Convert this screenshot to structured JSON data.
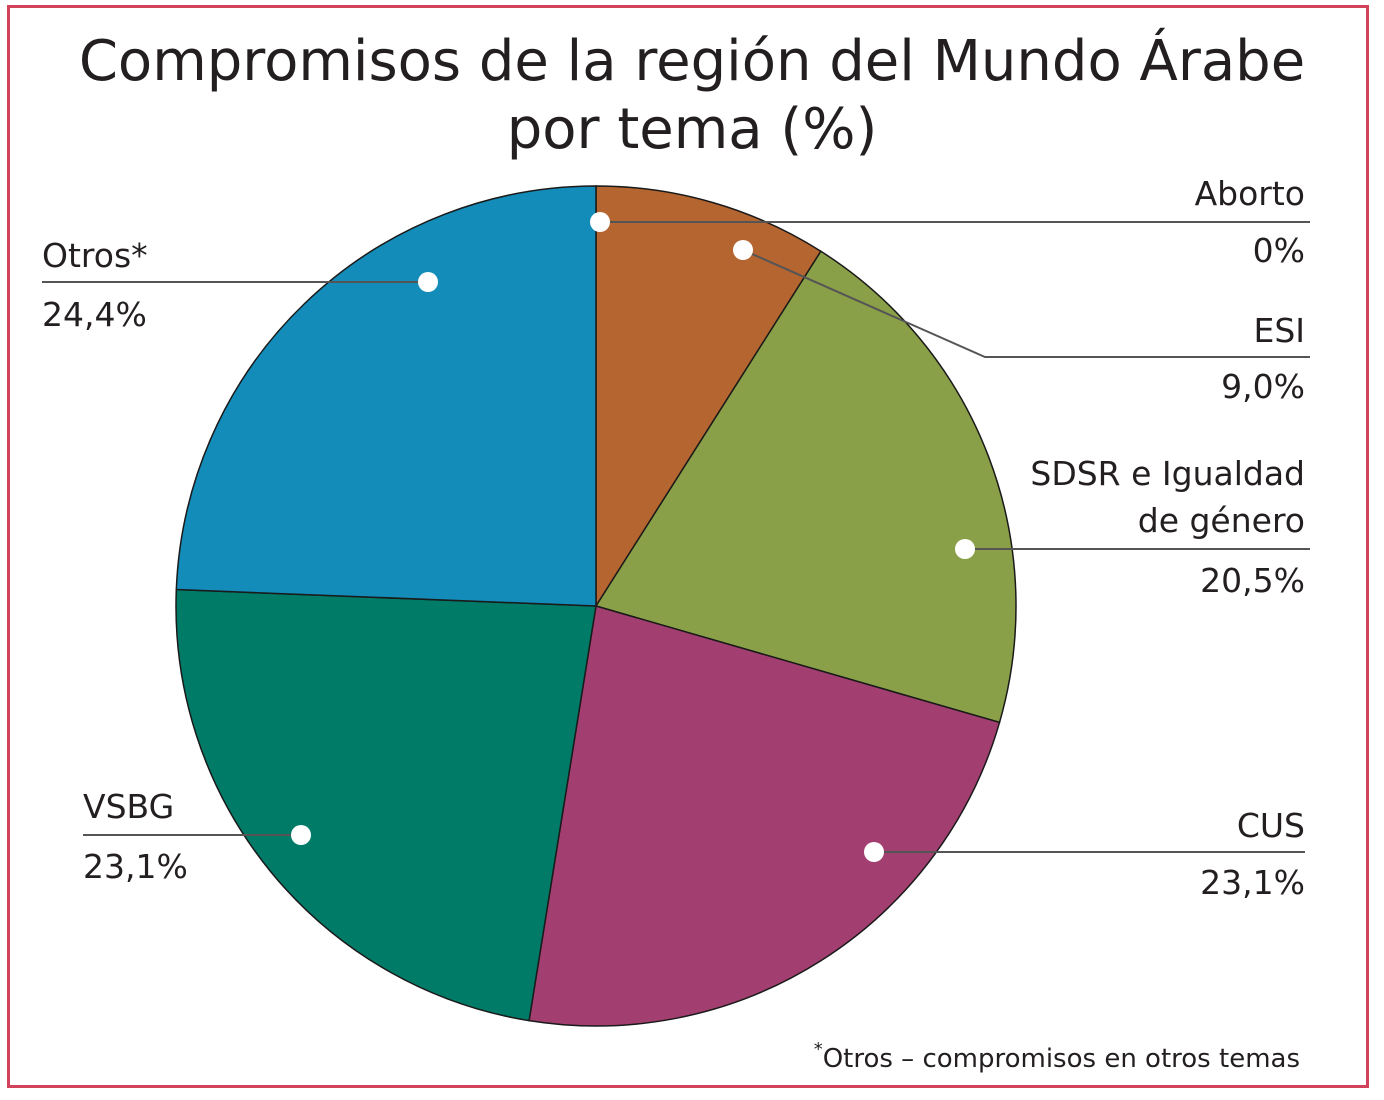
{
  "title_lines": [
    "Compromisos de la región del Mundo Árabe",
    "por tema (%)"
  ],
  "footnote": {
    "mark": "*",
    "text": "Otros – compromisos en otros temas"
  },
  "colors": {
    "border": "#d1435b",
    "leader": "#555555",
    "dot": "#ffffff"
  },
  "chart_data": {
    "type": "pie",
    "title": "Compromisos de la región del Mundo Árabe por tema (%)",
    "start_angle_deg": 0,
    "direction": "clockwise",
    "slices": [
      {
        "label": "Aborto",
        "value": 0,
        "display": "0%",
        "color": "#b5652f"
      },
      {
        "label": "ESI",
        "value": 9.0,
        "display": "9,0%",
        "color": "#b5652f"
      },
      {
        "label": "SDSR e Igualdad de género",
        "label_lines": [
          "SDSR e Igualdad",
          "de género"
        ],
        "value": 20.5,
        "display": "20,5%",
        "color": "#8aa048"
      },
      {
        "label": "CUS",
        "value": 23.1,
        "display": "23,1%",
        "color": "#a23f70"
      },
      {
        "label": "VSBG",
        "value": 23.1,
        "display": "23,1%",
        "color": "#007b68"
      },
      {
        "label": "Otros*",
        "value": 24.4,
        "display": "24,4%",
        "color": "#138cb9"
      }
    ]
  }
}
